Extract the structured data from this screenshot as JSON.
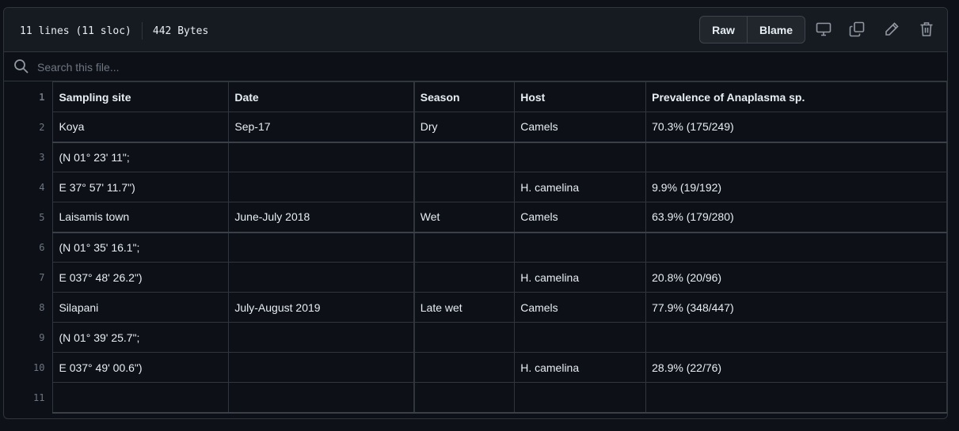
{
  "header": {
    "lines_info": "11 lines (11 sloc)",
    "size_info": "442 Bytes",
    "raw_label": "Raw",
    "blame_label": "Blame"
  },
  "icons": {
    "display": "desktop-icon",
    "copy": "copy-icon",
    "edit": "pencil-icon",
    "delete": "trash-icon",
    "search": "search-icon"
  },
  "search": {
    "placeholder": "Search this file..."
  },
  "table": {
    "rows": [
      {
        "ln": "1",
        "cells": [
          "Sampling site",
          "Date",
          "Season",
          "Host",
          "Prevalence of Anaplasma sp."
        ]
      },
      {
        "ln": "2",
        "cells": [
          "Koya",
          "Sep-17",
          "Dry",
          "Camels",
          "70.3% (175/249)"
        ]
      },
      {
        "ln": "3",
        "cells": [
          "(N 01° 23' 11\";",
          "",
          "",
          "",
          ""
        ]
      },
      {
        "ln": "4",
        "cells": [
          "E 37° 57' 11.7\")",
          "",
          "",
          "H. camelina",
          "9.9% (19/192)"
        ]
      },
      {
        "ln": "5",
        "cells": [
          "Laisamis town",
          "June-July 2018",
          "Wet",
          "Camels",
          "63.9% (179/280)"
        ]
      },
      {
        "ln": "6",
        "cells": [
          "(N 01° 35' 16.1\";",
          "",
          "",
          "",
          ""
        ]
      },
      {
        "ln": "7",
        "cells": [
          "E 037° 48' 26.2\")",
          "",
          "",
          "H. camelina",
          "20.8% (20/96)"
        ]
      },
      {
        "ln": "8",
        "cells": [
          "Silapani",
          "July-August 2019",
          "Late wet",
          "Camels",
          "77.9% (348/447)"
        ]
      },
      {
        "ln": "9",
        "cells": [
          "(N 01° 39' 25.7\";",
          "",
          "",
          "",
          ""
        ]
      },
      {
        "ln": "10",
        "cells": [
          "E 037° 49' 00.6\")",
          "",
          "",
          "H. camelina",
          "28.9% (22/76)"
        ]
      },
      {
        "ln": "11",
        "cells": [
          "",
          "",
          "",
          "",
          ""
        ]
      }
    ]
  }
}
